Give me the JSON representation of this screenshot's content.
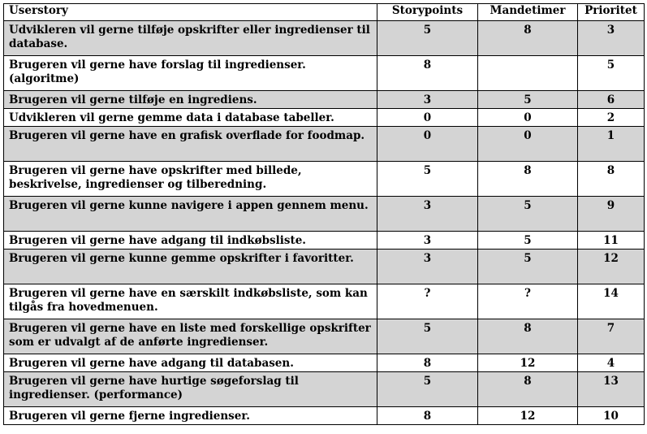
{
  "headers": {
    "userstory": "Userstory",
    "storypoints": "Storypoints",
    "mandetimer": "Mandetimer",
    "prioritet": "Prioritet"
  },
  "rows": [
    {
      "story": "Udvikleren vil gerne tilføje opskrifter eller ingredienser til database.",
      "storypoints": "5",
      "mandetimer": "8",
      "prioritet": "3",
      "shaded": true,
      "lines": 2
    },
    {
      "story": "Brugeren vil gerne have forslag til ingredienser. (algoritme)",
      "storypoints": "8",
      "mandetimer": "",
      "prioritet": "5",
      "shaded": false,
      "lines": 2
    },
    {
      "story": "Brugeren vil gerne tilføje en ingrediens.",
      "storypoints": "3",
      "mandetimer": "5",
      "prioritet": "6",
      "shaded": true,
      "lines": 1
    },
    {
      "story": "Udvikleren vil gerne gemme data i database tabeller.",
      "storypoints": "0",
      "mandetimer": "0",
      "prioritet": "2",
      "shaded": false,
      "lines": 1
    },
    {
      "story": "Brugeren vil gerne have en grafisk overflade for foodmap.",
      "storypoints": "0",
      "mandetimer": "0",
      "prioritet": "1",
      "shaded": true,
      "lines": 2
    },
    {
      "story": "Brugeren vil gerne have opskrifter med billede, beskrivelse, ingredienser og tilberedning.",
      "storypoints": "5",
      "mandetimer": "8",
      "prioritet": "8",
      "shaded": false,
      "lines": 2
    },
    {
      "story": "Brugeren vil gerne kunne navigere i appen gennem menu.",
      "storypoints": "3",
      "mandetimer": "5",
      "prioritet": "9",
      "shaded": true,
      "lines": 2
    },
    {
      "story": "Brugeren vil gerne have adgang til indkøbsliste.",
      "storypoints": "3",
      "mandetimer": "5",
      "prioritet": "11",
      "shaded": false,
      "lines": 1
    },
    {
      "story": "Brugeren vil gerne kunne gemme opskrifter i favoritter.",
      "storypoints": "3",
      "mandetimer": "5",
      "prioritet": "12",
      "shaded": true,
      "lines": 2
    },
    {
      "story": "Brugeren vil gerne have en særskilt indkøbsliste, som kan tilgås fra hovedmenuen.",
      "storypoints": "?",
      "mandetimer": "?",
      "prioritet": "14",
      "shaded": false,
      "lines": 2
    },
    {
      "story": "Brugeren vil gerne have en liste med forskellige opskrifter som er udvalgt af de anførte ingredienser.",
      "storypoints": "5",
      "mandetimer": "8",
      "prioritet": "7",
      "shaded": true,
      "lines": 2
    },
    {
      "story": "Brugeren vil gerne have adgang til databasen.",
      "storypoints": "8",
      "mandetimer": "12",
      "prioritet": "4",
      "shaded": false,
      "lines": 1
    },
    {
      "story": "Brugeren vil gerne have hurtige søgeforslag til ingredienser. (performance)",
      "storypoints": "5",
      "mandetimer": "8",
      "prioritet": "13",
      "shaded": true,
      "lines": 2
    },
    {
      "story": "Brugeren vil gerne fjerne ingredienser.",
      "storypoints": "8",
      "mandetimer": "12",
      "prioritet": "10",
      "shaded": false,
      "lines": 1
    }
  ]
}
